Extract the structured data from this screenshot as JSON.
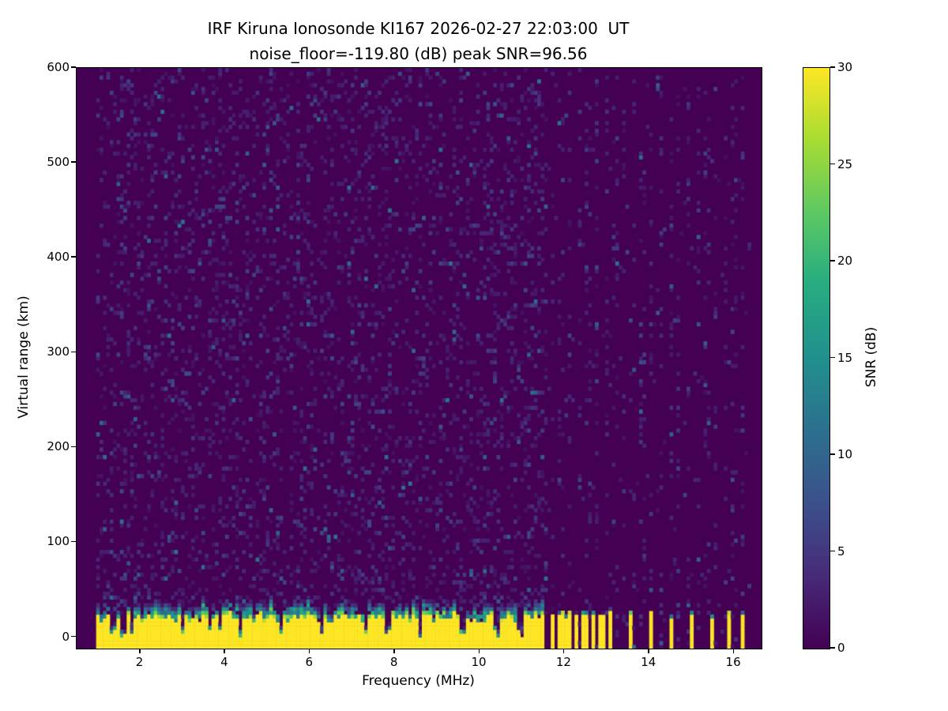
{
  "chart_data": {
    "type": "heatmap",
    "title": "IRF Kiruna Ionosonde KI167 2026-02-27 22:03:00  UT",
    "subtitle": "noise_floor=-119.80 (dB) peak SNR=96.56",
    "xlabel": "Frequency (MHz)",
    "ylabel": "Virtual range (km)",
    "xlim": [
      0.5,
      16.65
    ],
    "ylim": [
      -12,
      600
    ],
    "xticks": [
      2,
      4,
      6,
      8,
      10,
      12,
      14,
      16
    ],
    "yticks": [
      0,
      100,
      200,
      300,
      400,
      500,
      600
    ],
    "colormap": "viridis",
    "background_snr_color": "#440154",
    "colorbar": {
      "label": "SNR (dB)",
      "ticks": [
        0,
        5,
        10,
        15,
        20,
        25,
        30
      ],
      "vmin": 0,
      "vmax": 30
    },
    "noise_floor_db": -119.8,
    "peak_snr_db": 96.56,
    "features": {
      "noise_speckle_probability_low_band": 0.16,
      "noise_speckle_probability_noise_column": 0.12,
      "noise_speckle_probability_high_band": 0.02,
      "ground_clutter": {
        "freq_start_mhz": 1.0,
        "freq_end_mhz": 11.55,
        "solid_top_km_min": 14,
        "solid_top_km_max": 23,
        "mixed_top_km_max": 40,
        "notch_freqs_mhz": [
          1.35,
          1.6,
          1.78,
          3.0,
          3.62,
          3.9,
          4.38,
          5.32,
          6.3,
          7.3,
          7.85,
          8.6,
          9.6,
          10.4,
          10.95
        ]
      },
      "rfi_stripes": {
        "freqs_mhz": [
          11.74,
          11.87,
          12.0,
          12.14,
          12.27,
          12.41,
          12.54,
          12.68,
          12.81,
          12.95,
          13.08,
          13.55,
          14.05,
          14.5,
          15.0,
          15.45,
          15.9,
          16.2
        ],
        "top_km_min": 18,
        "top_km_max": 25
      },
      "noise_column_period_mhz": 0.215,
      "noise_column_start_mhz": 11.7
    }
  }
}
